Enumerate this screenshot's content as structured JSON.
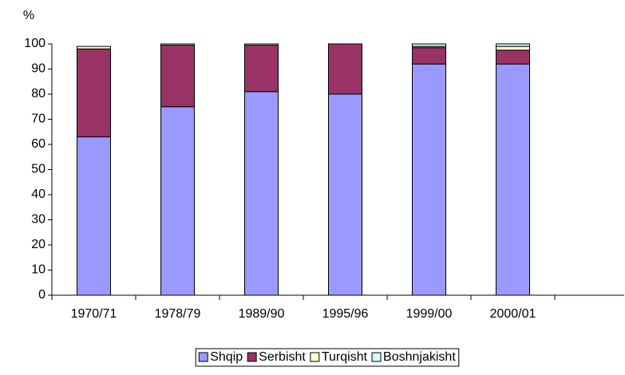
{
  "chart_data": {
    "type": "stacked_bar",
    "y_label": "%",
    "categories": [
      "1970/71",
      "1978/79",
      "1989/90",
      "1995/96",
      "1999/00",
      "2000/01",
      null
    ],
    "series": [
      {
        "name": "Shqip",
        "color": "#9999ff",
        "values": [
          63,
          75,
          81,
          80,
          92,
          92,
          null
        ]
      },
      {
        "name": "Serbisht",
        "color": "#993366",
        "values": [
          35,
          24.5,
          18.5,
          20,
          6.5,
          5.5,
          null
        ]
      },
      {
        "name": "Turqisht",
        "color": "#ffffcc",
        "values": [
          1,
          0.5,
          0.5,
          0,
          0.5,
          1.5,
          null
        ]
      },
      {
        "name": "Boshnjakisht",
        "color": "#ccffff",
        "values": [
          0,
          0,
          0,
          0,
          1,
          1,
          null
        ]
      }
    ],
    "ylim": [
      0,
      100
    ],
    "yticks": [
      0,
      10,
      20,
      30,
      40,
      50,
      60,
      70,
      80,
      90,
      100
    ],
    "legend": "bottom"
  }
}
